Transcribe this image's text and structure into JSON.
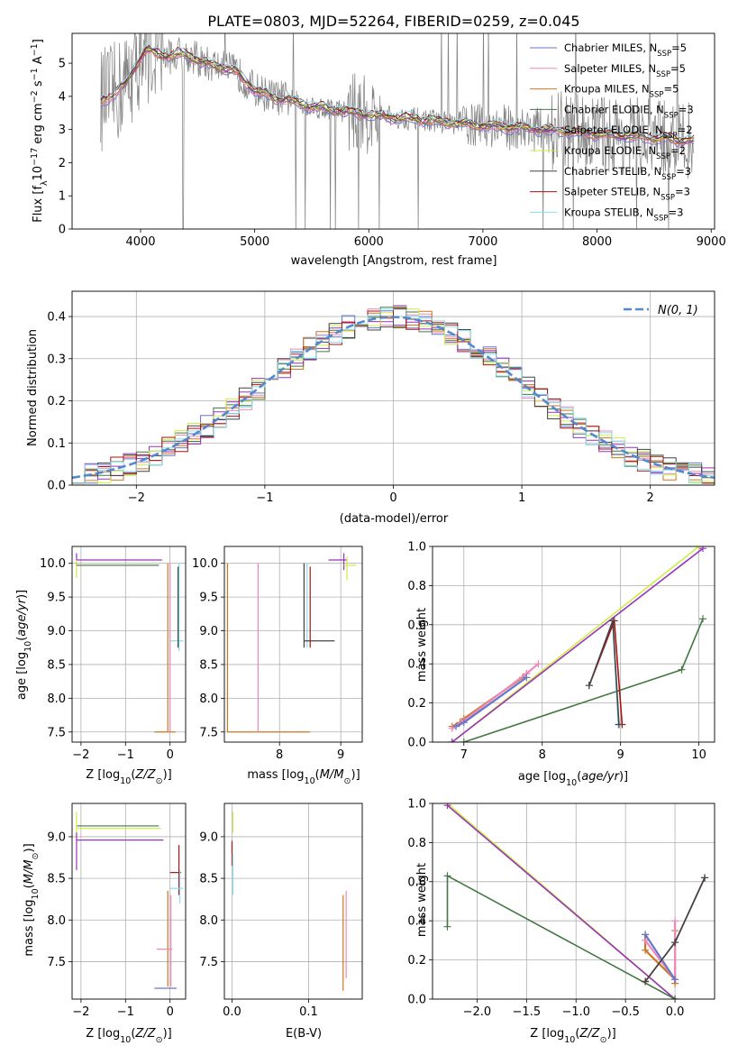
{
  "title": "PLATE=0803, MJD=52264, FIBERID=0259, z=0.045",
  "colors": {
    "chabrier_miles": "#6677cc",
    "salpeter_miles": "#ee88bb",
    "kroupa_miles": "#cc7722",
    "chabrier_elodie": "#447744",
    "salpeter_elodie": "#9933bb",
    "kroupa_elodie": "#ccee44",
    "chabrier_stelib": "#444444",
    "salpeter_stelib": "#aa1111",
    "kroupa_stelib": "#88ddee",
    "data": "#808080",
    "normal": "#5588cc"
  },
  "series_names": [
    "Chabrier MILES, N_SSP=5",
    "Salpeter MILES, N_SSP=5",
    "Kroupa MILES, N_SSP=5",
    "Chabrier ELODIE, N_SSP=3",
    "Salpeter ELODIE, N_SSP=2",
    "Kroupa ELODIE, N_SSP=2",
    "Chabrier STELIB, N_SSP=3",
    "Salpeter STELIB, N_SSP=3",
    "Kroupa STELIB, N_SSP=3"
  ],
  "legend": {
    "chabrier_miles": "Chabrier MILES, N",
    "salpeter_miles": "Salpeter MILES, N",
    "kroupa_miles": "Kroupa MILES, N",
    "chabrier_elodie": "Chabrier ELODIE, N",
    "salpeter_elodie": "Salpeter ELODIE, N",
    "kroupa_elodie": "Kroupa ELODIE, N",
    "chabrier_stelib": "Chabrier STELIB, N",
    "salpeter_stelib": "Salpeter STELIB, N",
    "kroupa_stelib": "Kroupa STELIB, N",
    "sub": "SSP",
    "n_values": [
      "=5",
      "=5",
      "=5",
      "=3",
      "=2",
      "=2",
      "=3",
      "=3",
      "=3"
    ],
    "normal": "N(0, 1)"
  },
  "chart_data": [
    {
      "id": "spectrum",
      "type": "line",
      "xlabel": "wavelength [Angstrom, rest frame]",
      "ylabel": "Flux [f_λ 10^-17 erg cm^-2 s^-1 A^-1]",
      "xlim": [
        3400,
        9030
      ],
      "ylim": [
        0,
        5.9
      ],
      "xticks": [
        4000,
        5000,
        6000,
        7000,
        8000,
        9000
      ],
      "yticks": [
        0,
        1,
        2,
        3,
        4,
        5
      ],
      "legend_position": "top-right",
      "model_continuum": {
        "x": [
          3650,
          3750,
          3850,
          3950,
          4050,
          4150,
          4250,
          4350,
          4450,
          4550,
          4700,
          4850,
          5000,
          5150,
          5300,
          5500,
          5700,
          5900,
          6100,
          6300,
          6500,
          6700,
          6900,
          7100,
          7300,
          7500,
          7700,
          7900,
          8100,
          8300,
          8500,
          8700,
          8850
        ],
        "y": [
          3.9,
          4.0,
          4.3,
          4.9,
          5.4,
          5.3,
          5.2,
          5.3,
          5.2,
          5.0,
          4.9,
          4.7,
          4.2,
          4.0,
          3.9,
          3.7,
          3.6,
          3.5,
          3.4,
          3.35,
          3.3,
          3.2,
          3.15,
          3.1,
          3.05,
          3.0,
          2.95,
          2.9,
          2.85,
          2.8,
          2.75,
          2.7,
          2.65
        ]
      }
    },
    {
      "id": "residuals",
      "type": "line",
      "xlabel": "(data-model)/error",
      "ylabel": "Normed distribution",
      "xlim": [
        -2.5,
        2.5
      ],
      "ylim": [
        0,
        0.46
      ],
      "xticks": [
        -2,
        -1,
        0,
        1,
        2
      ],
      "yticks": [
        0.0,
        0.1,
        0.2,
        0.3,
        0.4
      ],
      "grid": true,
      "legend_position": "top-right",
      "normal_curve": {
        "mean": 0,
        "sigma": 1
      }
    },
    {
      "id": "age_vs_Z",
      "type": "errorbar",
      "xlabel": "Z [log10(Z/Z☉)]",
      "ylabel": "age [log10(age/yr)]",
      "xlim": [
        -2.2,
        0.35
      ],
      "ylim": [
        7.35,
        10.25
      ],
      "xticks": [
        -2,
        -1,
        0
      ],
      "yticks": [
        7.5,
        8.0,
        8.5,
        9.0,
        9.5,
        10.0
      ],
      "grid": true
    },
    {
      "id": "age_vs_mass",
      "type": "errorbar",
      "xlabel": "mass [log10(M/M☉)]",
      "xlim": [
        7.1,
        9.35
      ],
      "ylim": [
        7.35,
        10.25
      ],
      "xticks": [
        8,
        9
      ],
      "yticks": [
        7.5,
        8.0,
        8.5,
        9.0,
        9.5,
        10.0
      ],
      "grid": true
    },
    {
      "id": "massweight_vs_age",
      "type": "line",
      "xlabel": "age [log10(age/yr)]",
      "ylabel": "mass weight",
      "xlim": [
        6.6,
        10.2
      ],
      "ylim": [
        0,
        1.0
      ],
      "xticks": [
        7,
        8,
        9,
        10
      ],
      "yticks": [
        0.0,
        0.2,
        0.4,
        0.6,
        0.8,
        1.0
      ],
      "grid": true,
      "series": [
        {
          "key": "kroupa_elodie",
          "x": [
            6.85,
            10.0
          ],
          "y": [
            0.0,
            1.0
          ]
        },
        {
          "key": "salpeter_elodie",
          "x": [
            6.85,
            10.05
          ],
          "y": [
            0.0,
            0.99
          ]
        },
        {
          "key": "chabrier_elodie",
          "x": [
            7.0,
            9.78,
            10.05
          ],
          "y": [
            0.0,
            0.37,
            0.63
          ]
        },
        {
          "key": "kroupa_miles",
          "x": [
            6.85,
            6.95,
            7.0,
            7.75,
            7.8
          ],
          "y": [
            0.08,
            0.1,
            0.12,
            0.33,
            0.35
          ]
        },
        {
          "key": "salpeter_miles",
          "x": [
            6.85,
            7.0,
            7.8,
            7.95
          ],
          "y": [
            0.07,
            0.11,
            0.35,
            0.4
          ]
        },
        {
          "key": "chabrier_miles",
          "x": [
            6.9,
            7.0,
            7.8
          ],
          "y": [
            0.08,
            0.1,
            0.33
          ]
        },
        {
          "key": "kroupa_stelib",
          "x": [
            8.6,
            8.9,
            8.97
          ],
          "y": [
            0.29,
            0.62,
            0.09
          ]
        },
        {
          "key": "salpeter_stelib",
          "x": [
            8.6,
            8.92,
            9.02
          ],
          "y": [
            0.29,
            0.62,
            0.09
          ]
        },
        {
          "key": "chabrier_stelib",
          "x": [
            8.6,
            8.9,
            8.98
          ],
          "y": [
            0.29,
            0.62,
            0.09
          ]
        }
      ]
    },
    {
      "id": "mass_vs_Z",
      "type": "errorbar",
      "xlabel": "Z [log10(Z/Z☉)]",
      "ylabel": "mass [log10(M/M☉)]",
      "xlim": [
        -2.2,
        0.35
      ],
      "ylim": [
        7.05,
        9.4
      ],
      "xticks": [
        -2,
        -1,
        0
      ],
      "yticks": [
        7.5,
        8.0,
        8.5,
        9.0
      ],
      "grid": true
    },
    {
      "id": "mass_vs_EBV",
      "type": "errorbar",
      "xlabel": "E(B-V)",
      "xlim": [
        -0.01,
        0.17
      ],
      "ylim": [
        7.05,
        9.4
      ],
      "xticks": [
        0.0,
        0.1
      ],
      "yticks": [
        7.5,
        8.0,
        8.5,
        9.0
      ],
      "grid": true
    },
    {
      "id": "massweight_vs_Z",
      "type": "line",
      "xlabel": "Z [log10(Z/Z☉)]",
      "ylabel": "mass weight",
      "xlim": [
        -2.45,
        0.4
      ],
      "ylim": [
        0,
        1.0
      ],
      "xticks": [
        -2.0,
        -1.5,
        -1.0,
        -0.5,
        0.0
      ],
      "yticks": [
        0.0,
        0.2,
        0.4,
        0.6,
        0.8,
        1.0
      ],
      "grid": true,
      "series": [
        {
          "key": "kroupa_elodie",
          "x": [
            -2.3,
            0.0
          ],
          "y": [
            1.0,
            0.0
          ]
        },
        {
          "key": "salpeter_elodie",
          "x": [
            -2.3,
            0.0
          ],
          "y": [
            0.99,
            0.0
          ]
        },
        {
          "key": "chabrier_elodie",
          "x": [
            -2.3,
            -2.3,
            0.0
          ],
          "y": [
            0.37,
            0.63,
            0.0
          ]
        },
        {
          "key": "kroupa_miles",
          "x": [
            -0.3,
            -0.3,
            0.0,
            0.0,
            0.0
          ],
          "y": [
            0.33,
            0.25,
            0.1,
            0.08,
            0.35
          ]
        },
        {
          "key": "salpeter_miles",
          "x": [
            -0.3,
            0.0,
            0.0
          ],
          "y": [
            0.3,
            0.1,
            0.4
          ]
        },
        {
          "key": "chabrier_miles",
          "x": [
            -0.3,
            0.0
          ],
          "y": [
            0.33,
            0.1
          ]
        },
        {
          "key": "kroupa_stelib",
          "x": [
            -0.3,
            0.0,
            0.3
          ],
          "y": [
            0.09,
            0.29,
            0.62
          ]
        },
        {
          "key": "salpeter_stelib",
          "x": [
            -0.3,
            0.0,
            0.3
          ],
          "y": [
            0.09,
            0.29,
            0.62
          ]
        },
        {
          "key": "chabrier_stelib",
          "x": [
            -0.3,
            0.0,
            0.3
          ],
          "y": [
            0.09,
            0.29,
            0.62
          ]
        }
      ]
    }
  ]
}
